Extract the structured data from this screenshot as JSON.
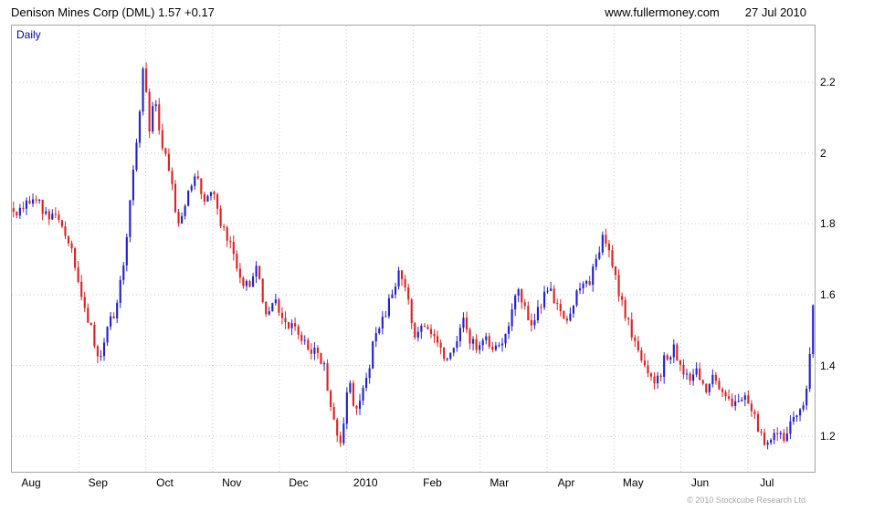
{
  "header": {
    "title": "Denison Mines Corp (DML) 1.57 +0.17",
    "site": "www.fullermoney.com",
    "date": "27 Jul 2010"
  },
  "footer": {
    "copyright": "© 2010 Stockcube Research Ltd"
  },
  "chart_data": {
    "type": "candlestick",
    "timeframe_label": "Daily",
    "instrument": "Denison Mines Corp (DML)",
    "last_price": 1.57,
    "change": "+0.17",
    "x_range": "Aug 2009 - 27 Jul 2010",
    "x_labels": [
      "Aug",
      "Sep",
      "Oct",
      "Nov",
      "Dec",
      "2010",
      "Feb",
      "Mar",
      "Apr",
      "May",
      "Jun",
      "Jul"
    ],
    "y_ticks": [
      2.2,
      2,
      1.8,
      1.6,
      1.4,
      1.2
    ],
    "price_range": [
      1.1,
      2.36
    ],
    "num_candles": 248,
    "up_color": "#2222cc",
    "down_color": "#dd2222",
    "grid_color": "#c8c8c8",
    "legend_position": "none",
    "grid": "dotted",
    "close_anchors": [
      [
        0.0,
        1.82
      ],
      [
        0.015,
        1.86
      ],
      [
        0.026,
        1.88
      ],
      [
        0.04,
        1.82
      ],
      [
        0.055,
        1.83
      ],
      [
        0.07,
        1.75
      ],
      [
        0.083,
        1.62
      ],
      [
        0.095,
        1.52
      ],
      [
        0.106,
        1.42
      ],
      [
        0.118,
        1.5
      ],
      [
        0.13,
        1.58
      ],
      [
        0.14,
        1.72
      ],
      [
        0.15,
        1.95
      ],
      [
        0.158,
        2.12
      ],
      [
        0.163,
        2.28
      ],
      [
        0.17,
        2.05
      ],
      [
        0.176,
        2.18
      ],
      [
        0.184,
        2.05
      ],
      [
        0.196,
        1.93
      ],
      [
        0.208,
        1.78
      ],
      [
        0.218,
        1.9
      ],
      [
        0.228,
        1.93
      ],
      [
        0.24,
        1.85
      ],
      [
        0.25,
        1.9
      ],
      [
        0.262,
        1.78
      ],
      [
        0.272,
        1.73
      ],
      [
        0.282,
        1.65
      ],
      [
        0.293,
        1.62
      ],
      [
        0.303,
        1.68
      ],
      [
        0.315,
        1.55
      ],
      [
        0.327,
        1.58
      ],
      [
        0.34,
        1.52
      ],
      [
        0.352,
        1.5
      ],
      [
        0.365,
        1.46
      ],
      [
        0.378,
        1.44
      ],
      [
        0.388,
        1.4
      ],
      [
        0.398,
        1.28
      ],
      [
        0.406,
        1.18
      ],
      [
        0.413,
        1.22
      ],
      [
        0.42,
        1.38
      ],
      [
        0.427,
        1.26
      ],
      [
        0.435,
        1.3
      ],
      [
        0.443,
        1.38
      ],
      [
        0.452,
        1.48
      ],
      [
        0.462,
        1.53
      ],
      [
        0.474,
        1.6
      ],
      [
        0.483,
        1.66
      ],
      [
        0.492,
        1.6
      ],
      [
        0.503,
        1.48
      ],
      [
        0.512,
        1.53
      ],
      [
        0.52,
        1.5
      ],
      [
        0.531,
        1.45
      ],
      [
        0.543,
        1.4
      ],
      [
        0.553,
        1.47
      ],
      [
        0.562,
        1.53
      ],
      [
        0.572,
        1.47
      ],
      [
        0.582,
        1.44
      ],
      [
        0.592,
        1.47
      ],
      [
        0.6,
        1.45
      ],
      [
        0.61,
        1.47
      ],
      [
        0.62,
        1.52
      ],
      [
        0.63,
        1.62
      ],
      [
        0.638,
        1.58
      ],
      [
        0.648,
        1.5
      ],
      [
        0.658,
        1.57
      ],
      [
        0.668,
        1.62
      ],
      [
        0.678,
        1.57
      ],
      [
        0.688,
        1.52
      ],
      [
        0.698,
        1.57
      ],
      [
        0.708,
        1.61
      ],
      [
        0.718,
        1.63
      ],
      [
        0.728,
        1.68
      ],
      [
        0.738,
        1.77
      ],
      [
        0.746,
        1.7
      ],
      [
        0.755,
        1.63
      ],
      [
        0.765,
        1.55
      ],
      [
        0.775,
        1.48
      ],
      [
        0.785,
        1.42
      ],
      [
        0.795,
        1.37
      ],
      [
        0.805,
        1.35
      ],
      [
        0.815,
        1.42
      ],
      [
        0.825,
        1.45
      ],
      [
        0.835,
        1.39
      ],
      [
        0.845,
        1.36
      ],
      [
        0.855,
        1.39
      ],
      [
        0.865,
        1.33
      ],
      [
        0.875,
        1.36
      ],
      [
        0.885,
        1.32
      ],
      [
        0.895,
        1.3
      ],
      [
        0.905,
        1.28
      ],
      [
        0.915,
        1.3
      ],
      [
        0.925,
        1.26
      ],
      [
        0.935,
        1.2
      ],
      [
        0.945,
        1.17
      ],
      [
        0.955,
        1.21
      ],
      [
        0.965,
        1.19
      ],
      [
        0.974,
        1.24
      ],
      [
        0.983,
        1.27
      ],
      [
        0.99,
        1.3
      ],
      [
        0.995,
        1.4
      ],
      [
        1.0,
        1.57
      ]
    ]
  }
}
